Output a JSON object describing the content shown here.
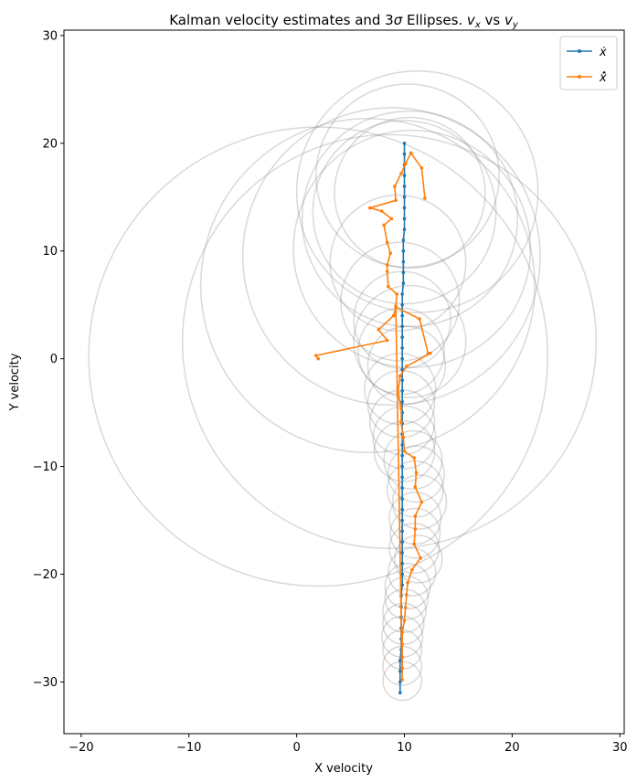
{
  "chart_data": {
    "type": "line",
    "title": "Kalman velocity estimates and 3σ Ellipses. vx vs vy",
    "xlabel": "X velocity",
    "ylabel": "Y velocity",
    "xlim": [
      -21.6,
      30.4
    ],
    "ylim": [
      -34.8,
      30.5
    ],
    "xticks": [
      -20,
      -10,
      0,
      10,
      20,
      30
    ],
    "yticks": [
      -30,
      -20,
      -10,
      0,
      10,
      20,
      30
    ],
    "x_tick_labels": [
      "−20",
      "−10",
      "0",
      "10",
      "20",
      "30"
    ],
    "y_tick_labels": [
      "−30",
      "−20",
      "−10",
      "0",
      "10",
      "20",
      "30"
    ],
    "legend_position": "top-right",
    "series": [
      {
        "name": "ẋ",
        "color": "#1f77b4",
        "points": [
          [
            10.0,
            20.0
          ],
          [
            10.0,
            19.0
          ],
          [
            10.0,
            18.0
          ],
          [
            10.0,
            17.0
          ],
          [
            10.0,
            16.0
          ],
          [
            10.0,
            15.0
          ],
          [
            10.0,
            14.0
          ],
          [
            10.0,
            13.0
          ],
          [
            10.0,
            12.0
          ],
          [
            9.9,
            11.0
          ],
          [
            9.9,
            10.0
          ],
          [
            9.9,
            9.0
          ],
          [
            9.9,
            8.0
          ],
          [
            9.9,
            7.0
          ],
          [
            9.8,
            6.0
          ],
          [
            9.8,
            5.0
          ],
          [
            9.8,
            4.0
          ],
          [
            9.8,
            3.0
          ],
          [
            9.8,
            2.0
          ],
          [
            9.8,
            1.0
          ],
          [
            9.8,
            0.0
          ],
          [
            9.8,
            -1.0
          ],
          [
            9.8,
            -2.0
          ],
          [
            9.8,
            -3.0
          ],
          [
            9.8,
            -4.0
          ],
          [
            9.8,
            -5.0
          ],
          [
            9.8,
            -6.0
          ],
          [
            9.8,
            -7.0
          ],
          [
            9.8,
            -8.0
          ],
          [
            9.8,
            -9.0
          ],
          [
            9.8,
            -10.0
          ],
          [
            9.8,
            -11.0
          ],
          [
            9.8,
            -12.0
          ],
          [
            9.8,
            -13.0
          ],
          [
            9.8,
            -14.0
          ],
          [
            9.8,
            -15.0
          ],
          [
            9.8,
            -16.0
          ],
          [
            9.8,
            -17.0
          ],
          [
            9.8,
            -18.0
          ],
          [
            9.8,
            -19.0
          ],
          [
            9.8,
            -20.0
          ],
          [
            9.8,
            -21.0
          ],
          [
            9.7,
            -22.0
          ],
          [
            9.7,
            -23.0
          ],
          [
            9.7,
            -24.0
          ],
          [
            9.7,
            -25.0
          ],
          [
            9.7,
            -26.0
          ],
          [
            9.7,
            -27.0
          ],
          [
            9.6,
            -28.0
          ],
          [
            9.6,
            -29.0
          ],
          [
            9.6,
            -30.0
          ],
          [
            9.6,
            -31.0
          ]
        ]
      },
      {
        "name": "x̂̇",
        "color": "#ff7f0e",
        "points": [
          [
            2.0,
            0.0
          ],
          [
            1.8,
            0.3
          ],
          [
            8.4,
            1.7
          ],
          [
            7.6,
            2.7
          ],
          [
            9.0,
            4.0
          ],
          [
            9.2,
            4.8
          ],
          [
            11.4,
            3.7
          ],
          [
            12.2,
            0.5
          ],
          [
            12.4,
            0.5
          ],
          [
            10.2,
            -0.7
          ],
          [
            9.6,
            -1.6
          ],
          [
            9.4,
            -3.1
          ],
          [
            9.7,
            -4.6
          ],
          [
            9.7,
            -5.9
          ],
          [
            9.9,
            -7.3
          ],
          [
            10.0,
            -8.6
          ],
          [
            10.9,
            -9.2
          ],
          [
            11.1,
            -10.6
          ],
          [
            11.0,
            -11.9
          ],
          [
            11.6,
            -13.3
          ],
          [
            11.0,
            -14.6
          ],
          [
            11.0,
            -15.8
          ],
          [
            10.9,
            -17.2
          ],
          [
            11.5,
            -18.5
          ],
          [
            10.7,
            -19.6
          ],
          [
            10.3,
            -20.8
          ],
          [
            10.2,
            -21.9
          ],
          [
            10.1,
            -23.1
          ],
          [
            10.0,
            -24.3
          ],
          [
            9.8,
            -25.4
          ],
          [
            9.8,
            -26.5
          ],
          [
            9.8,
            -27.7
          ],
          [
            9.8,
            -28.7
          ],
          [
            9.8,
            -29.8
          ],
          [
            9.2,
            4.9
          ],
          [
            9.3,
            6.0
          ],
          [
            8.5,
            6.7
          ],
          [
            8.4,
            8.1
          ],
          [
            8.4,
            8.7
          ],
          [
            8.7,
            9.8
          ],
          [
            8.4,
            10.8
          ],
          [
            8.1,
            12.4
          ],
          [
            8.8,
            13.0
          ],
          [
            7.9,
            13.7
          ],
          [
            6.8,
            14.0
          ],
          [
            9.2,
            14.7
          ],
          [
            9.1,
            16.0
          ],
          [
            9.7,
            17.2
          ],
          [
            10.1,
            18.1
          ],
          [
            10.6,
            19.1
          ],
          [
            11.6,
            17.7
          ],
          [
            11.9,
            14.9
          ]
        ]
      }
    ],
    "ellipses": [
      {
        "cx": 2.0,
        "cy": 0.2,
        "r": 21.3
      },
      {
        "cx": 8.6,
        "cy": 1.6,
        "r": 19.2
      },
      {
        "cx": 6.6,
        "cy": 6.8,
        "r": 15.5
      },
      {
        "cx": 8.8,
        "cy": 9.5,
        "r": 13.8
      },
      {
        "cx": 10.7,
        "cy": 10.2,
        "r": 11.0
      },
      {
        "cx": 10.5,
        "cy": 13.0,
        "r": 10.0
      },
      {
        "cx": 10.0,
        "cy": 13.6,
        "r": 8.5
      },
      {
        "cx": 11.2,
        "cy": 15.5,
        "r": 11.2
      },
      {
        "cx": 10.3,
        "cy": 17.0,
        "r": 8.5
      },
      {
        "cx": 10.5,
        "cy": 15.4,
        "r": 7.0
      },
      {
        "cx": 9.4,
        "cy": 8.9,
        "r": 6.3
      },
      {
        "cx": 9.6,
        "cy": 5.3,
        "r": 5.5
      },
      {
        "cx": 9.8,
        "cy": 3.6,
        "r": 4.5
      },
      {
        "cx": 10.5,
        "cy": 1.6,
        "r": 5.2
      },
      {
        "cx": 9.7,
        "cy": 0.7,
        "r": 4.0
      },
      {
        "cx": 10.2,
        "cy": -0.6,
        "r": 3.6
      },
      {
        "cx": 9.6,
        "cy": -2.8,
        "r": 3.3
      },
      {
        "cx": 9.7,
        "cy": -4.2,
        "r": 3.1
      },
      {
        "cx": 9.8,
        "cy": -5.9,
        "r": 3.0
      },
      {
        "cx": 10.0,
        "cy": -7.3,
        "r": 2.9
      },
      {
        "cx": 10.0,
        "cy": -8.6,
        "r": 2.8
      },
      {
        "cx": 10.8,
        "cy": -9.4,
        "r": 2.7
      },
      {
        "cx": 11.1,
        "cy": -10.7,
        "r": 2.6
      },
      {
        "cx": 11.0,
        "cy": -12.1,
        "r": 2.6
      },
      {
        "cx": 11.4,
        "cy": -13.3,
        "r": 2.5
      },
      {
        "cx": 11.0,
        "cy": -14.8,
        "r": 2.4
      },
      {
        "cx": 11.0,
        "cy": -16.2,
        "r": 2.3
      },
      {
        "cx": 10.9,
        "cy": -17.6,
        "r": 2.3
      },
      {
        "cx": 11.3,
        "cy": -18.6,
        "r": 2.2
      },
      {
        "cx": 10.7,
        "cy": -19.8,
        "r": 2.2
      },
      {
        "cx": 10.3,
        "cy": -21.1,
        "r": 2.1
      },
      {
        "cx": 10.2,
        "cy": -22.2,
        "r": 2.0
      },
      {
        "cx": 10.0,
        "cy": -23.4,
        "r": 2.0
      },
      {
        "cx": 9.9,
        "cy": -24.6,
        "r": 1.9
      },
      {
        "cx": 9.8,
        "cy": -25.8,
        "r": 1.9
      },
      {
        "cx": 9.8,
        "cy": -27.0,
        "r": 1.8
      },
      {
        "cx": 9.8,
        "cy": -28.5,
        "r": 1.8
      },
      {
        "cx": 9.8,
        "cy": -29.9,
        "r": 1.8
      }
    ]
  }
}
